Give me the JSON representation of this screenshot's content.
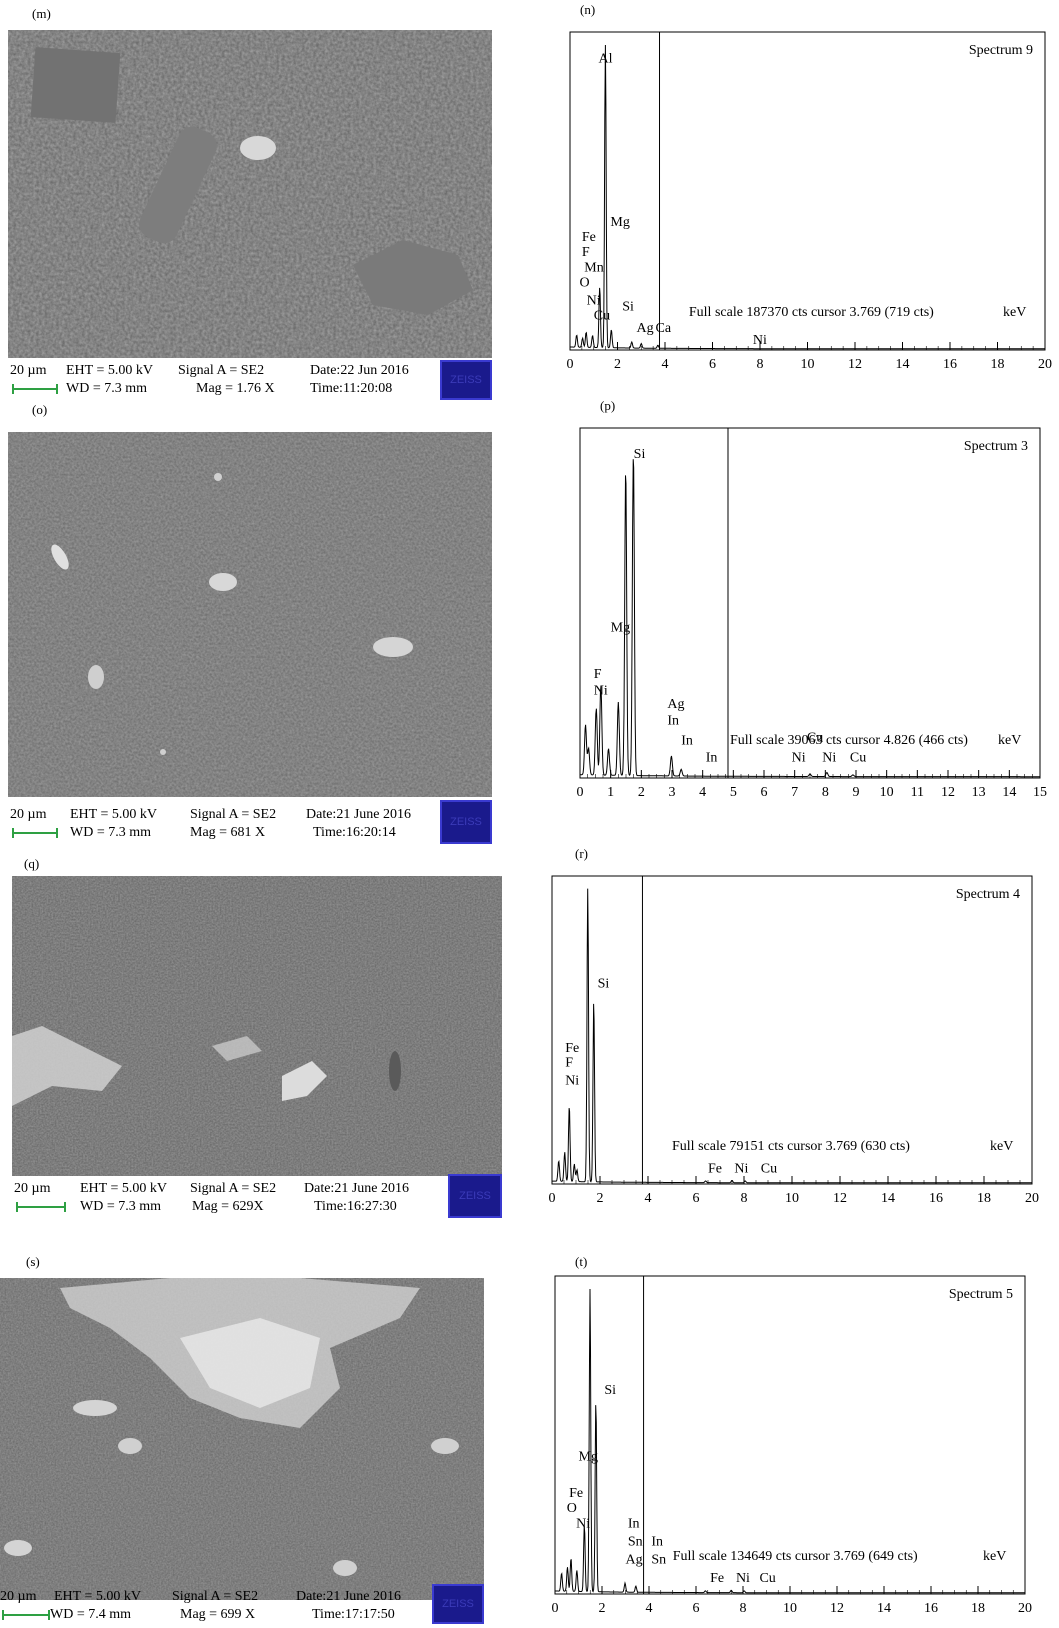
{
  "panels": [
    {
      "sem_label": "(m)",
      "eds_label": "(n)",
      "sem": {
        "scale": "20 µm",
        "eht": "EHT = 5.00 kV",
        "wd": "WD = 7.3 mm",
        "signal": "Signal A = SE2",
        "mag": "Mag = 1.76  X",
        "date": "Date:22 Jun 2016",
        "time": "Time:11:20:08",
        "logo": "ZEISS"
      }
    },
    {
      "sem_label": "(o)",
      "eds_label": "(p)",
      "sem": {
        "scale": "20 µm",
        "eht": "EHT = 5.00 kV",
        "wd": "WD = 7.3 mm",
        "signal": "Signal A = SE2",
        "mag": "Mag = 681 X",
        "date": "Date:21 June 2016",
        "time": "Time:16:20:14",
        "logo": "ZEISS"
      }
    },
    {
      "sem_label": "(q)",
      "eds_label": "(r)",
      "sem": {
        "scale": "20 µm",
        "eht": "EHT = 5.00 kV",
        "wd": "WD = 7.3 mm",
        "signal": "Signal A = SE2",
        "mag": "Mag = 629X",
        "date": "Date:21 June 2016",
        "time": "Time:16:27:30",
        "logo": "ZEISS"
      }
    },
    {
      "sem_label": "(s)",
      "eds_label": "(t)",
      "sem": {
        "scale": "20 µm",
        "eht": "EHT = 5.00 kV",
        "wd": "WD = 7.4 mm",
        "signal": "Signal A = SE2",
        "mag": "Mag = 699 X",
        "date": "Date:21 June 2016",
        "time": "Time:17:17:50",
        "logo": "ZEISS"
      }
    }
  ],
  "chart_data": [
    {
      "type": "line",
      "spectrum": "Spectrum 9",
      "xlim": [
        0,
        20
      ],
      "ticks": [
        0,
        2,
        4,
        6,
        8,
        10,
        12,
        14,
        16,
        18,
        20
      ],
      "fullscale": "Full scale 187370 cts cursor 3.769 (719 cts)",
      "unit": "keV",
      "cursor": 3.769,
      "peaks": [
        [
          0.28,
          4
        ],
        [
          0.53,
          3
        ],
        [
          0.68,
          5
        ],
        [
          0.95,
          4
        ],
        [
          1.25,
          20
        ],
        [
          1.49,
          100
        ],
        [
          1.74,
          6
        ],
        [
          2.6,
          2
        ],
        [
          3.0,
          1.5
        ],
        [
          3.7,
          1
        ]
      ],
      "labels": [
        {
          "t": "Al",
          "x": 1.2,
          "y": 95
        },
        {
          "t": "Mg",
          "x": 1.7,
          "y": 41
        },
        {
          "t": "Fe",
          "x": 0.5,
          "y": 36
        },
        {
          "t": "F",
          "x": 0.5,
          "y": 31
        },
        {
          "t": "Mn",
          "x": 0.6,
          "y": 26
        },
        {
          "t": "O",
          "x": 0.4,
          "y": 21
        },
        {
          "t": "Ni",
          "x": 0.7,
          "y": 15
        },
        {
          "t": "Cu",
          "x": 1.0,
          "y": 10
        },
        {
          "t": "Si",
          "x": 2.2,
          "y": 13
        },
        {
          "t": "Ag",
          "x": 2.8,
          "y": 6
        },
        {
          "t": "Ca",
          "x": 3.6,
          "y": 6
        },
        {
          "t": "Ni",
          "x": 7.7,
          "y": 2
        }
      ]
    },
    {
      "type": "line",
      "spectrum": "Spectrum 3",
      "xlim": [
        0,
        15
      ],
      "ticks": [
        0,
        1,
        2,
        3,
        4,
        5,
        6,
        7,
        8,
        9,
        10,
        11,
        12,
        13,
        14,
        15
      ],
      "fullscale": "Full scale 39063 cts cursor 4.826 (466 cts)",
      "unit": "keV",
      "cursor": 4.826,
      "peaks": [
        [
          0.18,
          15
        ],
        [
          0.28,
          8
        ],
        [
          0.53,
          20
        ],
        [
          0.68,
          27
        ],
        [
          0.93,
          8
        ],
        [
          1.25,
          22
        ],
        [
          1.49,
          92
        ],
        [
          1.74,
          97
        ],
        [
          2.98,
          6
        ],
        [
          3.3,
          2
        ],
        [
          7.5,
          0.8
        ],
        [
          8.05,
          1.2
        ],
        [
          8.9,
          0.5
        ]
      ],
      "labels": [
        {
          "t": "Si",
          "x": 1.75,
          "y": 96
        },
        {
          "t": "Mg",
          "x": 1.0,
          "y": 44
        },
        {
          "t": "F",
          "x": 0.45,
          "y": 30
        },
        {
          "t": "Ni",
          "x": 0.45,
          "y": 25
        },
        {
          "t": "Ag",
          "x": 2.85,
          "y": 21
        },
        {
          "t": "In",
          "x": 2.85,
          "y": 16
        },
        {
          "t": "In",
          "x": 3.3,
          "y": 10
        },
        {
          "t": "In",
          "x": 4.1,
          "y": 5
        },
        {
          "t": "Cu",
          "x": 7.4,
          "y": 11
        },
        {
          "t": "Ni",
          "x": 6.9,
          "y": 5
        },
        {
          "t": "Ni",
          "x": 7.9,
          "y": 5
        },
        {
          "t": "Cu",
          "x": 8.8,
          "y": 5
        }
      ]
    },
    {
      "type": "line",
      "spectrum": "Spectrum 4",
      "xlim": [
        0,
        20
      ],
      "ticks": [
        0,
        2,
        4,
        6,
        8,
        10,
        12,
        14,
        16,
        18,
        20
      ],
      "fullscale": "Full scale 79151 cts cursor 3.769 (630 cts)",
      "unit": "keV",
      "cursor": 3.769,
      "peaks": [
        [
          0.28,
          7
        ],
        [
          0.53,
          10
        ],
        [
          0.72,
          26
        ],
        [
          0.93,
          6
        ],
        [
          1.04,
          4
        ],
        [
          1.49,
          100
        ],
        [
          1.74,
          62
        ],
        [
          6.4,
          0.6
        ],
        [
          7.5,
          0.8
        ],
        [
          8.05,
          0.6
        ]
      ],
      "labels": [
        {
          "t": "Si",
          "x": 1.9,
          "y": 67
        },
        {
          "t": "Fe",
          "x": 0.55,
          "y": 45
        },
        {
          "t": "F",
          "x": 0.55,
          "y": 40
        },
        {
          "t": "Ni",
          "x": 0.55,
          "y": 34
        },
        {
          "t": "Fe",
          "x": 6.5,
          "y": 4
        },
        {
          "t": "Ni",
          "x": 7.6,
          "y": 4
        },
        {
          "t": "Cu",
          "x": 8.7,
          "y": 4
        }
      ]
    },
    {
      "type": "line",
      "spectrum": "Spectrum 5",
      "xlim": [
        0,
        20
      ],
      "ticks": [
        0,
        2,
        4,
        6,
        8,
        10,
        12,
        14,
        16,
        18,
        20
      ],
      "fullscale": "Full scale 134649 cts cursor 3.769 (649 cts)",
      "unit": "keV",
      "cursor": 3.769,
      "peaks": [
        [
          0.28,
          6
        ],
        [
          0.53,
          8
        ],
        [
          0.68,
          11
        ],
        [
          0.93,
          7
        ],
        [
          1.25,
          22
        ],
        [
          1.49,
          100
        ],
        [
          1.74,
          63
        ],
        [
          2.98,
          3
        ],
        [
          3.44,
          2
        ],
        [
          6.4,
          0.6
        ],
        [
          7.5,
          0.8
        ],
        [
          8.05,
          0.6
        ]
      ],
      "labels": [
        {
          "t": "Si",
          "x": 2.1,
          "y": 66
        },
        {
          "t": "Mg",
          "x": 1.0,
          "y": 44
        },
        {
          "t": "Fe",
          "x": 0.6,
          "y": 32
        },
        {
          "t": "O",
          "x": 0.5,
          "y": 27
        },
        {
          "t": "Ni",
          "x": 0.9,
          "y": 22
        },
        {
          "t": "In",
          "x": 3.1,
          "y": 22
        },
        {
          "t": "Sn",
          "x": 3.1,
          "y": 16
        },
        {
          "t": "In",
          "x": 4.1,
          "y": 16
        },
        {
          "t": "Ag",
          "x": 3.0,
          "y": 10
        },
        {
          "t": "Sn",
          "x": 4.1,
          "y": 10
        },
        {
          "t": "Fe",
          "x": 6.6,
          "y": 4
        },
        {
          "t": "Ni",
          "x": 7.7,
          "y": 4
        },
        {
          "t": "Cu",
          "x": 8.7,
          "y": 4
        }
      ]
    }
  ]
}
